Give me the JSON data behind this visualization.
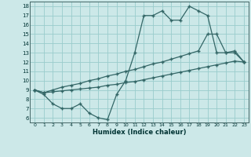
{
  "xlabel": "Humidex (Indice chaleur)",
  "background_color": "#cce8e8",
  "grid_color": "#99cccc",
  "line_color": "#336666",
  "xlim": [
    -0.5,
    23.5
  ],
  "ylim": [
    5.5,
    18.5
  ],
  "xticks": [
    0,
    1,
    2,
    3,
    4,
    5,
    6,
    7,
    8,
    9,
    10,
    11,
    12,
    13,
    14,
    15,
    16,
    17,
    18,
    19,
    20,
    21,
    22,
    23
  ],
  "yticks": [
    6,
    7,
    8,
    9,
    10,
    11,
    12,
    13,
    14,
    15,
    16,
    17,
    18
  ],
  "line1_x": [
    0,
    1,
    2,
    3,
    4,
    5,
    6,
    7,
    8,
    9,
    10,
    11,
    12,
    13,
    14,
    15,
    16,
    17,
    18,
    19,
    20,
    21,
    22,
    23
  ],
  "line1_y": [
    9.0,
    8.5,
    7.5,
    7.0,
    7.0,
    7.5,
    6.5,
    6.0,
    5.8,
    8.5,
    10.0,
    13.0,
    17.0,
    17.0,
    17.5,
    16.5,
    16.5,
    18.0,
    17.5,
    17.0,
    13.0,
    13.0,
    13.0,
    12.0
  ],
  "line2_x": [
    0,
    1,
    2,
    3,
    4,
    5,
    6,
    7,
    8,
    9,
    10,
    11,
    12,
    13,
    14,
    15,
    16,
    17,
    18,
    19,
    20,
    21,
    22,
    23
  ],
  "line2_y": [
    9.0,
    8.7,
    8.8,
    8.9,
    9.0,
    9.1,
    9.2,
    9.3,
    9.5,
    9.6,
    9.8,
    9.9,
    10.1,
    10.3,
    10.5,
    10.7,
    10.9,
    11.1,
    11.3,
    11.5,
    11.7,
    11.9,
    12.1,
    12.0
  ],
  "line3_x": [
    0,
    1,
    2,
    3,
    4,
    5,
    6,
    7,
    8,
    9,
    10,
    11,
    12,
    13,
    14,
    15,
    16,
    17,
    18,
    19,
    20,
    21,
    22,
    23
  ],
  "line3_y": [
    9.0,
    8.7,
    9.0,
    9.3,
    9.5,
    9.7,
    10.0,
    10.2,
    10.5,
    10.7,
    11.0,
    11.2,
    11.5,
    11.8,
    12.0,
    12.3,
    12.6,
    12.9,
    13.2,
    15.0,
    15.0,
    13.0,
    13.2,
    12.0
  ]
}
